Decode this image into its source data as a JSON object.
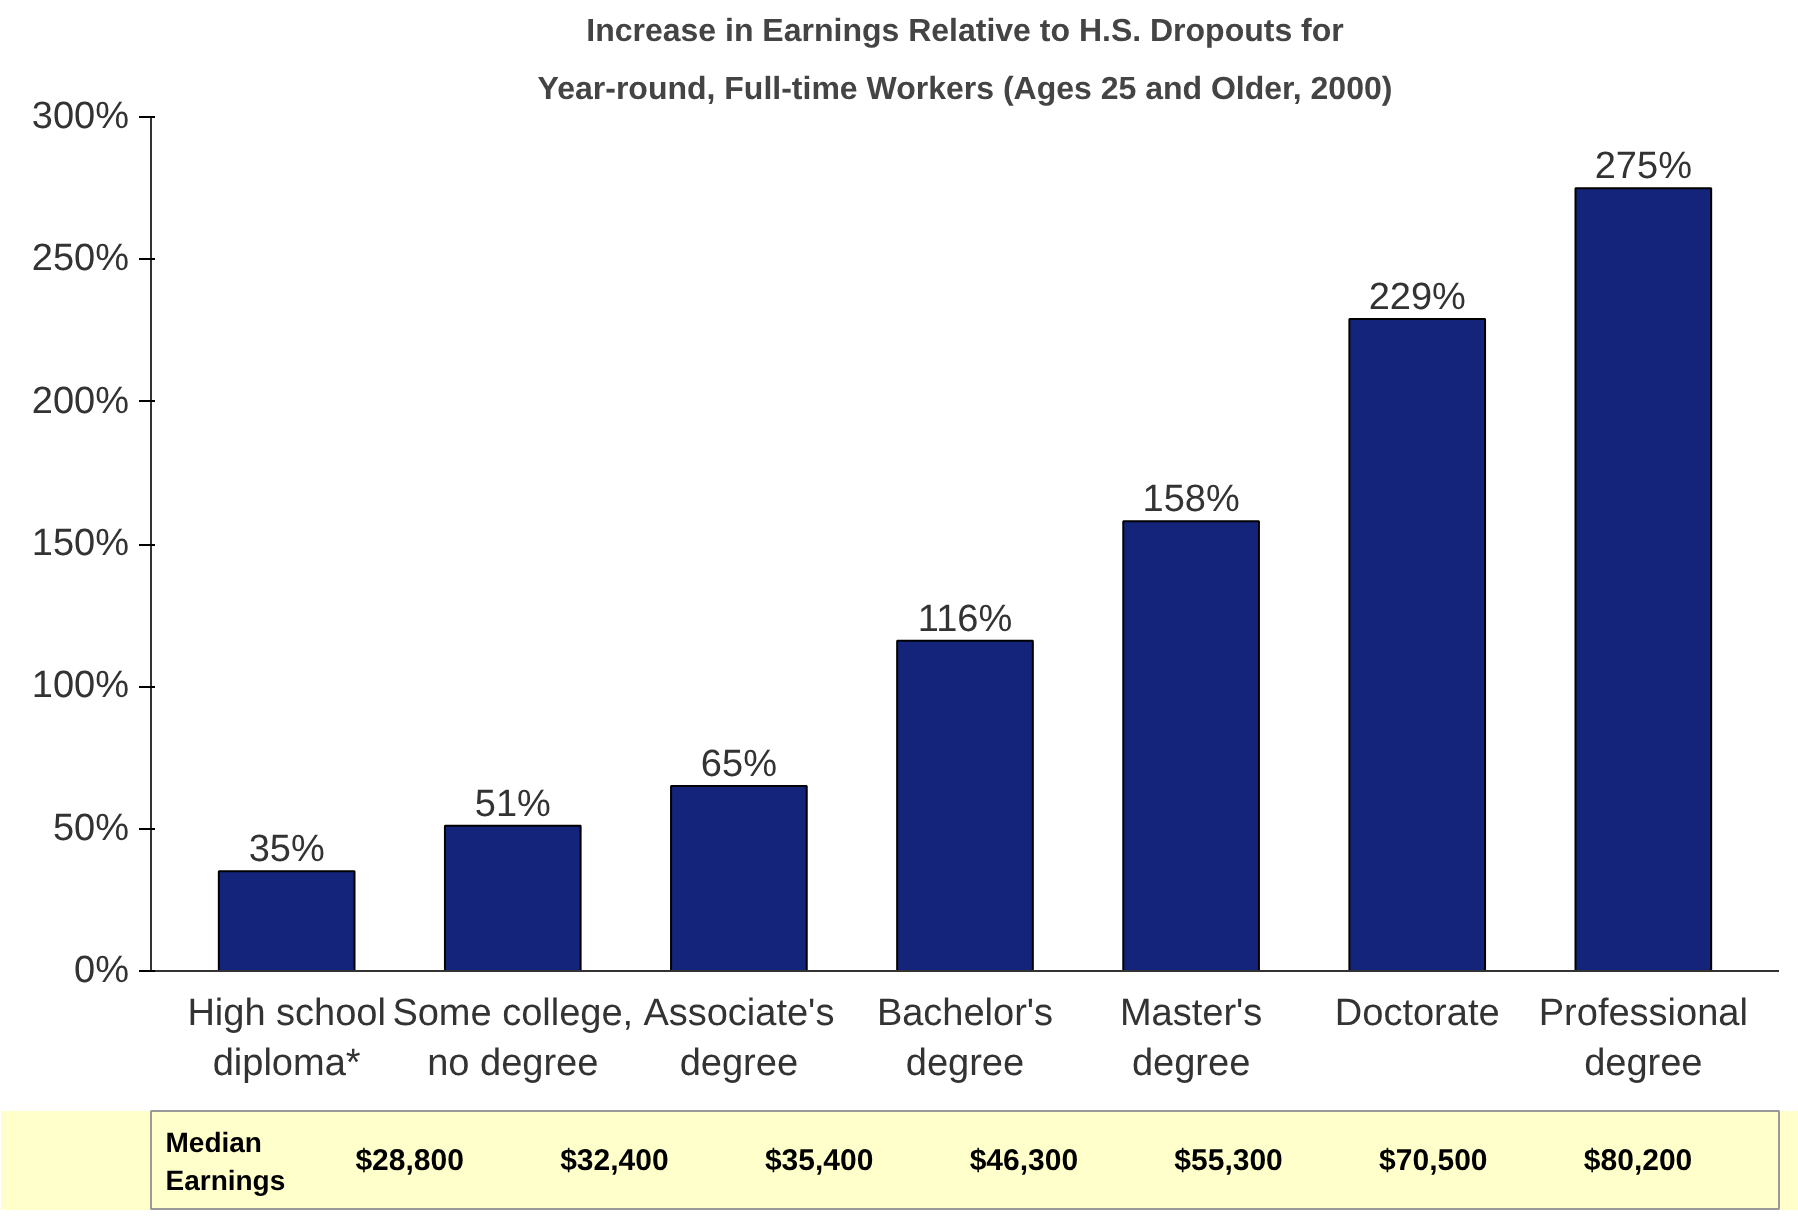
{
  "chart_data": {
    "type": "bar",
    "title": "Increase in Earnings Relative to H.S. Dropouts for",
    "subtitle": "Year-round, Full-time Workers (Ages 25 and Older, 2000)",
    "categories": [
      "High school diploma*",
      "Some college, no degree",
      "Associate's degree",
      "Bachelor's degree",
      "Master's degree",
      "Doctorate",
      "Professional degree"
    ],
    "values": [
      35,
      51,
      65,
      116,
      158,
      229,
      275
    ],
    "value_labels": [
      "35%",
      "51%",
      "65%",
      "116%",
      "158%",
      "229%",
      "275%"
    ],
    "color": "#14247a",
    "ylim": [
      0,
      300
    ],
    "yticks": [
      {
        "value": 0,
        "label": "0%"
      },
      {
        "value": 50,
        "label": "50%"
      },
      {
        "value": 100,
        "label": "100%"
      },
      {
        "value": 150,
        "label": "150%"
      },
      {
        "value": 200,
        "label": "200%"
      },
      {
        "value": 250,
        "label": "250%"
      },
      {
        "value": 300,
        "label": "300%"
      }
    ],
    "grid": false,
    "annotations": [
      "Median Earnings",
      "$28,800",
      "$32,400",
      "$35,400",
      "$46,300",
      "$55,300",
      "$70,500",
      "$80,200"
    ]
  }
}
